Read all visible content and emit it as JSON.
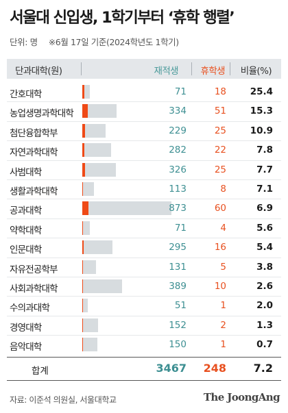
{
  "header": {
    "title": "서울대 신입생, 1학기부터 ‘휴학 행렬’",
    "unit": "단위: 명",
    "note": "※6월 17일 기준(2024학년도 1학기)"
  },
  "footer": {
    "source": "자료: 이준석 의원실, 서울대학교",
    "brand": "The JoongAng"
  },
  "colors": {
    "enrolled_bar": "#d7dcdf",
    "leave_bar": "#ef4a17",
    "enrolled_text": "#3d8f92",
    "leave_text": "#e8501f",
    "header_band": "#e4e7ea"
  },
  "chart_data": {
    "type": "bar",
    "columns": [
      "단과대학(원)",
      "재적생",
      "휴학생",
      "비율(%)"
    ],
    "categories": [
      "간호대학",
      "농업생명과학대학",
      "첨단융합학부",
      "자연과학대학",
      "사범대학",
      "생활과학대학",
      "공과대학",
      "약학대학",
      "인문대학",
      "자유전공학부",
      "사회과학대학",
      "수의과대학",
      "경영대학",
      "음악대학"
    ],
    "series": [
      {
        "name": "재적생",
        "values": [
          71,
          334,
          229,
          282,
          326,
          113,
          873,
          71,
          295,
          131,
          389,
          51,
          152,
          150
        ]
      },
      {
        "name": "휴학생",
        "values": [
          18,
          51,
          25,
          22,
          25,
          8,
          60,
          4,
          16,
          5,
          10,
          1,
          2,
          1
        ]
      }
    ],
    "ratio": [
      "25.4",
      "15.3",
      "10.9",
      "7.8",
      "7.7",
      "7.1",
      "6.9",
      "5.6",
      "5.4",
      "3.8",
      "2.6",
      "2.0",
      "1.3",
      "0.7"
    ],
    "total": {
      "label": "합계",
      "enrolled": "3467",
      "leave": "248",
      "ratio": "7.2"
    }
  }
}
